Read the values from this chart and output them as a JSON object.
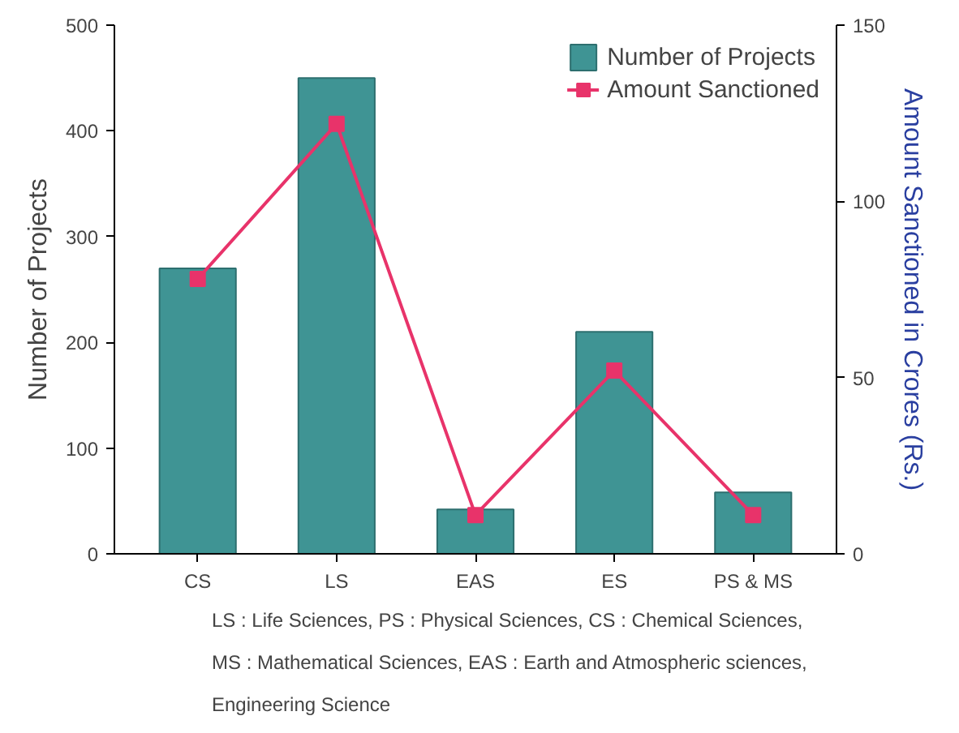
{
  "chart_data": {
    "type": "bar",
    "categories": [
      "CS",
      "LS",
      "EAS",
      "ES",
      "PS & MS"
    ],
    "ylabel": "Number of Projects",
    "y2label": "Amount Sanctioned in Crores (Rs.)",
    "ylim": [
      0,
      500
    ],
    "yticks": [
      0,
      100,
      200,
      300,
      400,
      500
    ],
    "y2lim": [
      0,
      150
    ],
    "y2ticks": [
      0,
      50,
      100,
      150
    ],
    "series": [
      {
        "name": "Number of Projects",
        "color": "#3f9494",
        "values": [
          270,
          450,
          42,
          210,
          58
        ]
      },
      {
        "name": "Amount Sanctioned",
        "type": "line",
        "axis": "y2",
        "color": "#e8336a",
        "values": [
          78,
          122,
          11,
          52,
          11
        ]
      }
    ],
    "marker": "square",
    "legend": "top right",
    "grid": false,
    "annotations": [
      "LS : Life Sciences, PS : Physical Sciences, CS : Chemical Sciences,",
      "MS : Mathematical Sciences, EAS : Earth and Atmospheric sciences,",
      "Engineering Science"
    ]
  }
}
